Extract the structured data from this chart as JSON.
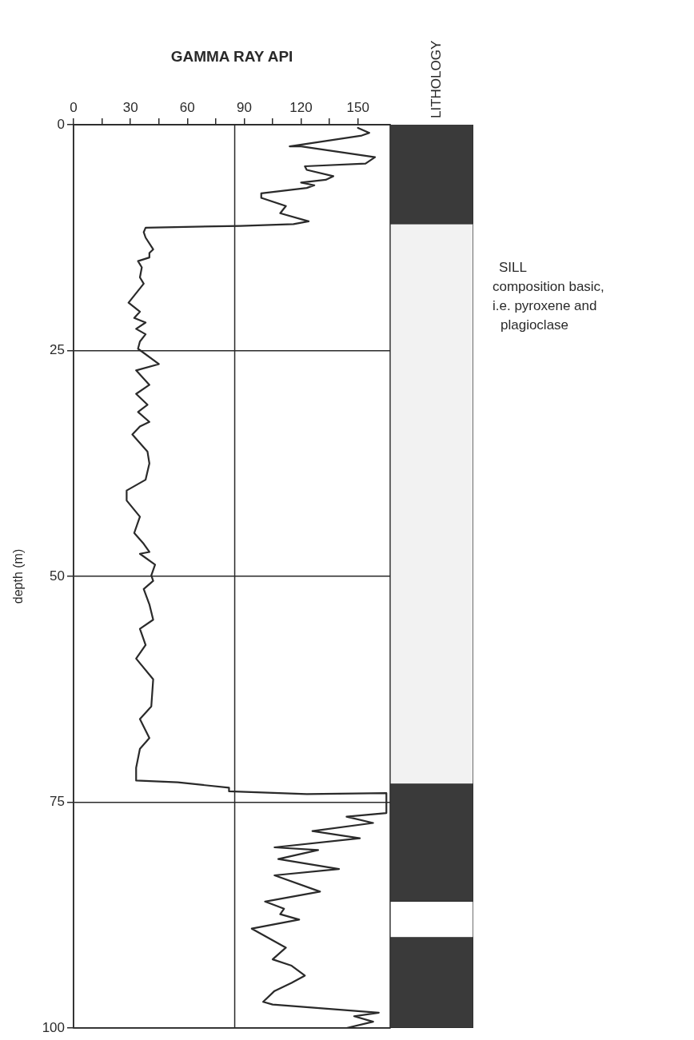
{
  "chart_data": [
    {
      "type": "line",
      "orientation": "horizontal",
      "xlabel": "GAMMA RAY API",
      "ylabel": "depth (m)",
      "color": "#2a2a2a",
      "legend": false,
      "marker": "none",
      "grid": "y",
      "xlim": [
        0,
        167
      ],
      "xticks": [
        0,
        {
          "value": 15,
          "label": null
        },
        30,
        {
          "value": 45,
          "label": null
        },
        60,
        {
          "value": 75,
          "label": null
        },
        90,
        {
          "value": 105,
          "label": null
        },
        120,
        {
          "value": 135,
          "label": null
        },
        150
      ],
      "ylim": [
        100,
        0
      ],
      "yticks": [
        0,
        25,
        50,
        75,
        100
      ],
      "ref_lines": [
        {
          "axis": "x",
          "value": 85,
          "color": "#2a2a2a"
        }
      ],
      "x": [
        0.35,
        0.9,
        1.2,
        2.4,
        2.4,
        3.6,
        4.3,
        4.6,
        5.0,
        5.7,
        6.1,
        6.4,
        6.7,
        7.0,
        7.6,
        8.1,
        9.0,
        9.8,
        10.7,
        11.0,
        11.2,
        11.4,
        11.9,
        12.5,
        13.8,
        14.2,
        14.7,
        15.1,
        15.8,
        16.9,
        17.6,
        19.7,
        20.7,
        21.4,
        21.9,
        22.6,
        23.2,
        24.0,
        24.8,
        26.5,
        27.2,
        28.8,
        29.8,
        31.0,
        31.8,
        32.9,
        33.4,
        34.3,
        36.2,
        37.5,
        39.3,
        40.5,
        41.6,
        43.4,
        45.2,
        46.4,
        47.3,
        47.5,
        48.7,
        49.9,
        50.5,
        51.4,
        53.1,
        54.8,
        55.8,
        57.6,
        59.1,
        61.4,
        64.4,
        65.8,
        67.9,
        69.1,
        71.2,
        72.6,
        72.8,
        73.4,
        73.8,
        74.1,
        74.0,
        76.2,
        76.6,
        77.3,
        78.2,
        79.0,
        80.0,
        80.3,
        81.3,
        82.4,
        83.1,
        84.9,
        86.0,
        86.8,
        87.4,
        88.0,
        89.0,
        91.1,
        92.4,
        93.1,
        94.2,
        95.0,
        95.9,
        97.1,
        97.4,
        98.3,
        98.7,
        99.3,
        100.0
      ],
      "values": [
        150,
        156,
        152,
        114,
        120,
        159,
        154,
        122,
        123,
        137,
        133,
        120,
        127,
        123,
        99,
        99,
        112,
        109,
        124,
        116,
        88,
        38,
        37,
        38,
        42,
        40,
        40,
        34,
        36,
        35,
        37,
        29,
        35,
        32,
        38,
        33,
        38,
        35,
        34,
        45,
        33,
        40,
        33,
        39,
        34,
        40,
        35,
        31,
        39,
        40,
        38,
        28,
        28,
        35,
        32,
        37,
        40,
        35,
        43,
        41,
        42,
        37,
        40,
        42,
        35,
        38,
        33,
        42,
        41,
        35,
        40,
        35,
        33,
        33,
        55,
        82,
        82,
        123,
        165,
        165,
        144,
        158,
        126,
        151,
        106,
        129,
        108,
        140,
        106,
        130,
        101,
        111,
        109,
        119,
        94,
        112,
        105,
        115,
        122,
        115,
        106,
        100,
        105,
        161,
        148,
        158,
        144
      ]
    },
    {
      "type": "bar",
      "stacked": true,
      "title": "LITHOLOGY",
      "categories": [
        null
      ],
      "ylim": [
        100,
        0
      ],
      "tick_labels": false,
      "legend": false,
      "series": [
        {
          "color": "#3a3a3a",
          "values": [
            11
          ]
        },
        {
          "name": "SILL",
          "color": "#f2f2f2",
          "values": [
            62
          ]
        },
        {
          "color": "#3a3a3a",
          "values": [
            13
          ]
        },
        {
          "color": "#ffffff",
          "values": [
            4
          ]
        },
        {
          "color": "#3a3a3a",
          "values": [
            10
          ]
        }
      ],
      "annotations": [
        "composition basic, i.e. pyroxene and plagioclase"
      ]
    }
  ]
}
